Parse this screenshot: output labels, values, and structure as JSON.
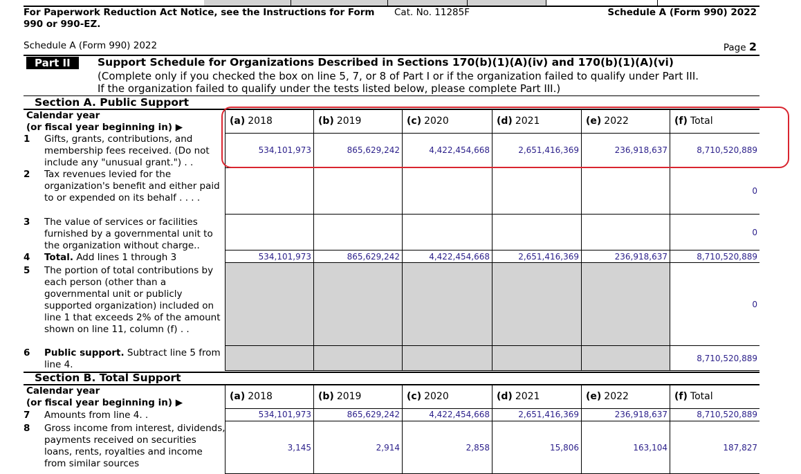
{
  "footer": {
    "notice": "For Paperwork Reduction Act Notice, see the Instructions for Form 990 or 990-EZ.",
    "cat_no": "Cat. No. 11285F",
    "form_id": "Schedule A (Form 990) 2022"
  },
  "page_header": {
    "form_id": "Schedule A (Form 990) 2022",
    "page_label": "Page",
    "page_number": "2"
  },
  "part": {
    "label": "Part II",
    "title": "Support Schedule for Organizations Described in Sections 170(b)(1)(A)(iv) and 170(b)(1)(A)(vi)",
    "instructions_1": "(Complete only if you checked the box on line 5, 7, or 8 of Part I or if the organization failed to qualify under Part III.",
    "instructions_2": "If the organization failed to qualify under the tests listed below, please complete Part III.)"
  },
  "columns": [
    {
      "letter": "(a)",
      "label": "2018"
    },
    {
      "letter": "(b)",
      "label": "2019"
    },
    {
      "letter": "(c)",
      "label": "2020"
    },
    {
      "letter": "(d)",
      "label": "2021"
    },
    {
      "letter": "(e)",
      "label": "2022"
    },
    {
      "letter": "(f)",
      "label": "Total"
    }
  ],
  "section_a": {
    "title": "Section A. Public Support",
    "calendar_label_1": "Calendar year",
    "calendar_label_2": "(or fiscal year beginning in) ▶",
    "lines": [
      {
        "num": "1",
        "text": "Gifts, grants, contributions, and membership fees received. (Do not include any \"unusual grant.\") . .",
        "values": [
          "534,101,973",
          "865,629,242",
          "4,422,454,668",
          "2,651,416,369",
          "236,918,637",
          "8,710,520,889"
        ]
      },
      {
        "num": "2",
        "text": "Tax revenues levied for the organization's benefit and either paid to or expended on its behalf . . . .",
        "values": [
          "",
          "",
          "",
          "",
          "",
          "0"
        ]
      },
      {
        "num": "3",
        "text": "The value of services or facilities furnished by a governmental unit to the organization without charge..",
        "values": [
          "",
          "",
          "",
          "",
          "",
          "0"
        ]
      },
      {
        "num": "4",
        "bold": "Total.",
        "text": "Add lines 1 through 3",
        "values": [
          "534,101,973",
          "865,629,242",
          "4,422,454,668",
          "2,651,416,369",
          "236,918,637",
          "8,710,520,889"
        ]
      },
      {
        "num": "5",
        "text": "The portion of total contributions by each person (other than a governmental unit or publicly supported organization) included on line 1 that exceeds 2% of the amount shown on line 11, column (f) . .",
        "values": [
          "",
          "",
          "",
          "",
          "",
          "0"
        ]
      },
      {
        "num": "6",
        "bold": "Public support.",
        "text": "Subtract line 5 from line 4.",
        "values": [
          "",
          "",
          "",
          "",
          "",
          "8,710,520,889"
        ]
      }
    ]
  },
  "section_b": {
    "title": "Section B. Total Support",
    "calendar_label_1": "Calendar year",
    "calendar_label_2": "(or fiscal year beginning in) ▶",
    "lines": [
      {
        "num": "7",
        "text": "Amounts from line 4. .",
        "values": [
          "534,101,973",
          "865,629,242",
          "4,422,454,668",
          "2,651,416,369",
          "236,918,637",
          "8,710,520,889"
        ]
      },
      {
        "num": "8",
        "text": "Gross income from interest, dividends, payments received on securities loans, rents, royalties and income from similar sources",
        "values": [
          "3,145",
          "2,914",
          "2,858",
          "15,806",
          "163,104",
          "187,827"
        ]
      }
    ]
  },
  "highlight_color": "#d9252f",
  "value_color": "#2b1f8a"
}
